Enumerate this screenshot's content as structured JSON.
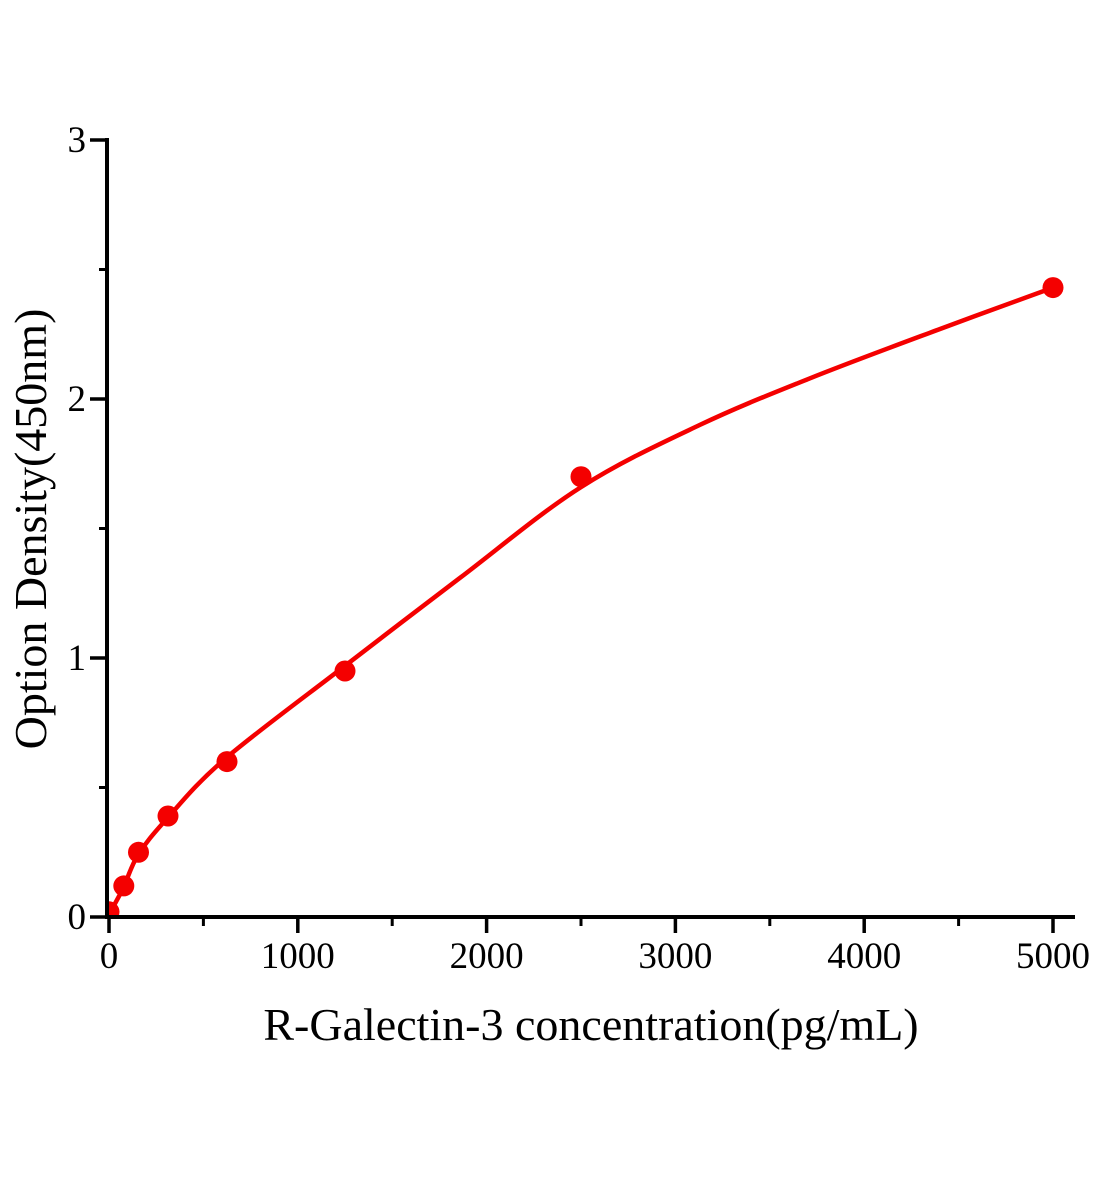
{
  "figure": {
    "background": "#ffffff",
    "curve_color": "#f40000",
    "point_color": "#f40000",
    "axis_color": "#000000"
  },
  "chart_data": {
    "type": "scatter",
    "title": "",
    "xlabel": "R-Galectin-3 concentration(pg/mL)",
    "ylabel": "Option Density(450nm)",
    "xlim": [
      0,
      5100
    ],
    "ylim": [
      0,
      3
    ],
    "grid": false,
    "legend_position": "none",
    "x_major_ticks": [
      0,
      1000,
      2000,
      3000,
      4000,
      5000
    ],
    "x_minor_ticks": [
      500,
      1500,
      2500,
      3500,
      4500
    ],
    "y_major_ticks": [
      0,
      1,
      2,
      3
    ],
    "y_minor_ticks": [
      0.5,
      1.5,
      2.5
    ],
    "series": [
      {
        "name": "standard-points",
        "type": "scatter",
        "marker": "circle",
        "x": [
          0,
          78.125,
          156.25,
          312.5,
          625,
          1250,
          2500,
          5000
        ],
        "y": [
          0.02,
          0.12,
          0.25,
          0.39,
          0.6,
          0.95,
          1.7,
          2.43
        ]
      },
      {
        "name": "fit-curve",
        "type": "line",
        "x": [
          0,
          74,
          154,
          307,
          614,
          1250,
          1860,
          2500,
          3130,
          3713,
          4400,
          5000
        ],
        "y": [
          0.01,
          0.11,
          0.24,
          0.38,
          0.61,
          0.97,
          1.31,
          1.66,
          1.9,
          2.08,
          2.27,
          2.43
        ]
      }
    ]
  }
}
